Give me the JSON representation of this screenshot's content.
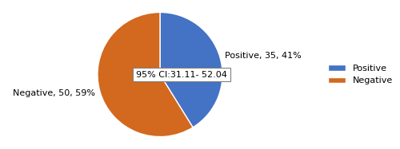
{
  "chart_data": {
    "type": "pie",
    "categories": [
      "Positive",
      "Negative"
    ],
    "values": [
      35,
      50
    ],
    "colors": [
      "#4472C4",
      "#D2691E"
    ],
    "value_labels": [
      "Positive, 35, 41%",
      "Negative, 50, 59%"
    ],
    "data_labels": true,
    "annotations": [
      "95% CI:31.11- 52.04"
    ],
    "legend": "center left"
  }
}
